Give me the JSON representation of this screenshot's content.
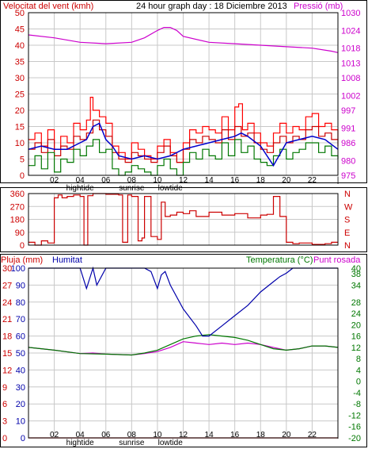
{
  "header": {
    "left_label": "Velocitat del vent (kmh)",
    "title": "24 hour graph day : 18 Diciembre 2013",
    "right_label": "Pressió (mb)"
  },
  "colors": {
    "wind": "#cc0000",
    "gust": "#ff0000",
    "avg_wind": "#0000cc",
    "wind_green": "#007700",
    "pressure": "#cc00cc",
    "direction": "#cc0000",
    "humidity": "#0000aa",
    "temperature": "#007700",
    "dewpoint": "#cc00cc",
    "rain": "#cc0000",
    "grid": "#c8c8c8",
    "frame": "#000000"
  },
  "x_axis": {
    "ticks": [
      "02",
      "04",
      "06",
      "08",
      "10",
      "12",
      "14",
      "16",
      "18",
      "20",
      "22",
      "|"
    ],
    "events": [
      {
        "label": "hightide",
        "hour": 4.0
      },
      {
        "label": "sunrise",
        "hour": 8.0
      },
      {
        "label": "lowtide",
        "hour": 11.0
      }
    ]
  },
  "chart_data": [
    {
      "type": "line",
      "id": "wind-pressure",
      "xlim": [
        0,
        24
      ],
      "ylim_left": [
        0,
        50
      ],
      "ylim_right": [
        975,
        1030
      ],
      "left_ticks": [
        0,
        5,
        10,
        15,
        20,
        25,
        30,
        35,
        40,
        45,
        50
      ],
      "right_ticks": [
        975,
        980,
        986,
        991,
        997,
        1002,
        1008,
        1013,
        1018,
        1024,
        1030
      ],
      "series": [
        {
          "key": "gust",
          "axis": "left",
          "x": [
            0,
            0.5,
            1,
            1.5,
            2,
            2.5,
            3,
            3.5,
            4,
            4.5,
            4.8,
            5,
            5.5,
            6,
            6.5,
            7,
            7.5,
            8,
            8.5,
            9,
            9.5,
            10,
            10.5,
            11,
            11.5,
            12,
            12.5,
            13,
            13.5,
            14,
            14.5,
            15,
            15.5,
            16,
            16.3,
            16.6,
            17,
            17.5,
            18,
            18.5,
            19,
            19.5,
            20,
            20.5,
            21,
            21.5,
            22,
            22.5,
            23,
            23.5,
            24
          ],
          "y": [
            11,
            13,
            9,
            14,
            8,
            12,
            10,
            16,
            14,
            17,
            24,
            20,
            18,
            16,
            9,
            7,
            5,
            10,
            8,
            6,
            5,
            9,
            11,
            7,
            4,
            10,
            14,
            13,
            15,
            14,
            13,
            18,
            14,
            21,
            22,
            14,
            16,
            13,
            10,
            9,
            13,
            16,
            13,
            15,
            14,
            18,
            19,
            15,
            16,
            14,
            11
          ]
        },
        {
          "key": "wind",
          "axis": "left",
          "x": [
            0,
            0.5,
            1,
            1.5,
            2,
            2.5,
            3,
            3.5,
            4,
            4.5,
            5,
            5.5,
            6,
            6.5,
            7,
            7.5,
            8,
            8.5,
            9,
            9.5,
            10,
            10.5,
            11,
            11.5,
            12,
            12.5,
            13,
            13.5,
            14,
            14.5,
            15,
            15.5,
            16,
            16.5,
            17,
            17.5,
            18,
            18.5,
            19,
            19.5,
            20,
            20.5,
            21,
            21.5,
            22,
            22.5,
            23,
            23.5,
            24
          ],
          "y": [
            8,
            10,
            7,
            11,
            6,
            9,
            8,
            12,
            11,
            13,
            17,
            14,
            12,
            7,
            5,
            4,
            7,
            6,
            5,
            4,
            7,
            9,
            6,
            4,
            8,
            11,
            10,
            12,
            11,
            10,
            14,
            11,
            15,
            12,
            13,
            10,
            8,
            7,
            10,
            12,
            10,
            12,
            11,
            14,
            15,
            12,
            13,
            11,
            9
          ]
        },
        {
          "key": "avg_wind",
          "axis": "left",
          "x": [
            0,
            1,
            2,
            3,
            4,
            4.5,
            5,
            5.5,
            6,
            6.5,
            7,
            8,
            9,
            10,
            11,
            12,
            13,
            14,
            15,
            16,
            16.5,
            17,
            18,
            19,
            20,
            21,
            22,
            23,
            24
          ],
          "y": [
            8,
            9,
            8,
            8,
            10,
            11,
            15,
            16,
            11,
            9,
            6,
            5,
            6,
            5,
            6,
            8,
            9,
            10,
            11,
            12,
            13,
            12,
            9,
            3,
            10,
            11,
            12,
            11,
            8
          ]
        },
        {
          "key": "wind_green",
          "axis": "left",
          "x": [
            0,
            0.5,
            1,
            1.5,
            2,
            2.5,
            3,
            3.5,
            4,
            4.5,
            5,
            5.5,
            6,
            6.5,
            7,
            7.5,
            8,
            8.5,
            9,
            9.5,
            10,
            10.5,
            11,
            11.5,
            12,
            12.5,
            13,
            13.5,
            14,
            14.5,
            15,
            15.5,
            16,
            16.5,
            17,
            17.5,
            18,
            18.5,
            19,
            19.5,
            20,
            20.5,
            21,
            21.5,
            22,
            22.5,
            23,
            23.5,
            24
          ],
          "y": [
            3,
            6,
            2,
            7,
            1,
            5,
            4,
            8,
            6,
            9,
            11,
            7,
            8,
            2,
            0,
            1,
            3,
            2,
            1,
            0,
            3,
            5,
            2,
            0,
            4,
            7,
            5,
            8,
            6,
            5,
            10,
            6,
            11,
            7,
            9,
            5,
            4,
            3,
            6,
            8,
            5,
            7,
            8,
            10,
            10,
            7,
            9,
            6,
            5
          ]
        },
        {
          "key": "pressure",
          "axis": "right",
          "x": [
            0,
            2,
            4,
            6,
            8,
            9,
            10,
            10.5,
            11,
            11.5,
            12,
            14,
            16,
            18,
            20,
            22,
            23.5,
            24
          ],
          "y": [
            1022.5,
            1021.5,
            1020,
            1019.5,
            1020,
            1021.5,
            1024,
            1025,
            1025,
            1024,
            1022,
            1020,
            1019.5,
            1019,
            1018.5,
            1018,
            1017,
            1016.5
          ]
        }
      ]
    },
    {
      "type": "line",
      "id": "wind-direction",
      "xlim": [
        0,
        24
      ],
      "ylim": [
        0,
        360
      ],
      "left_ticks": [
        0,
        90,
        180,
        270,
        360
      ],
      "right_labels": [
        "N",
        "W",
        "S",
        "E",
        "N"
      ],
      "series": [
        {
          "key": "direction",
          "x": [
            0,
            0.5,
            1,
            1.5,
            2,
            2.3,
            2.6,
            3,
            3.5,
            4,
            4.3,
            4.6,
            5,
            6,
            7,
            7.3,
            7.7,
            8,
            8.5,
            8.8,
            9,
            9.5,
            10,
            10.3,
            10.6,
            11,
            11.5,
            12,
            12.5,
            13,
            14,
            15,
            16,
            17,
            18,
            18.5,
            19,
            19.5,
            20,
            20.5,
            21,
            22,
            23,
            23.5,
            24
          ],
          "y": [
            20,
            0,
            30,
            15,
            330,
            350,
            330,
            340,
            350,
            340,
            0,
            345,
            360,
            355,
            350,
            20,
            350,
            340,
            30,
            50,
            340,
            60,
            40,
            300,
            200,
            210,
            230,
            220,
            240,
            200,
            230,
            210,
            220,
            190,
            210,
            215,
            340,
            200,
            20,
            10,
            15,
            5,
            10,
            20,
            20
          ]
        }
      ]
    },
    {
      "type": "line",
      "id": "humidity-temperature",
      "xlim": [
        0,
        24
      ],
      "left_pluja": [
        0,
        3,
        6,
        9,
        12,
        15,
        18,
        21,
        24,
        27,
        30
      ],
      "left_humitat": [
        0,
        10,
        20,
        30,
        40,
        50,
        60,
        70,
        80,
        90,
        100
      ],
      "right_ticks": [
        -20,
        -16,
        -12,
        -8,
        -4,
        0,
        4,
        8,
        12,
        16,
        20,
        24,
        28,
        34,
        38,
        40
      ],
      "series": [
        {
          "key": "humidity",
          "name": "Humitat",
          "axis": "humitat",
          "x": [
            0,
            2,
            4,
            4.5,
            5,
            5.3,
            6,
            8,
            9,
            9.5,
            10,
            10.3,
            10.6,
            11,
            12,
            13,
            13.5,
            14,
            15,
            16,
            17,
            18,
            19,
            19.5,
            20,
            20.5,
            21,
            22,
            23,
            24
          ],
          "y": [
            100,
            100,
            100,
            88,
            100,
            90,
            100,
            100,
            100,
            98,
            88,
            96,
            98,
            90,
            76,
            66,
            60,
            60,
            66,
            72,
            78,
            86,
            92,
            95,
            97,
            100,
            100,
            100,
            100,
            100
          ]
        },
        {
          "key": "temperature",
          "name": "Temperatura (°C)",
          "axis": "temp",
          "x": [
            0,
            2,
            4,
            6,
            8,
            9,
            10,
            11,
            12,
            13,
            14,
            15,
            16,
            17,
            18,
            19,
            20,
            21,
            22,
            23,
            24
          ],
          "y": [
            12,
            11,
            9.8,
            9.6,
            9.3,
            10,
            11,
            13,
            15,
            16,
            16.5,
            16,
            15.5,
            14.5,
            13,
            11.5,
            11,
            11.5,
            12.5,
            12.5,
            12
          ]
        },
        {
          "key": "dewpoint",
          "name": "Punt rosada",
          "axis": "temp",
          "x": [
            0,
            2,
            4,
            5,
            6,
            8,
            9,
            10,
            11,
            12,
            13,
            14,
            15,
            16,
            17,
            18,
            19,
            20,
            21,
            22,
            23,
            24
          ],
          "y": [
            12,
            11,
            9.8,
            10,
            9.6,
            9.3,
            9.8,
            10.5,
            12,
            14,
            13.5,
            13,
            13.5,
            13,
            13.5,
            13,
            12,
            11,
            11.5,
            12.5,
            12.5,
            12
          ]
        },
        {
          "key": "rain",
          "name": "Pluja (mm)",
          "axis": "pluja",
          "x": [
            0,
            24
          ],
          "y": [
            0,
            0
          ]
        }
      ],
      "labels": {
        "rain": "Pluja (mm)",
        "humidity": "Humitat",
        "temperature": "Temperatura (°C)",
        "dewpoint": "Punt rosada"
      }
    }
  ]
}
